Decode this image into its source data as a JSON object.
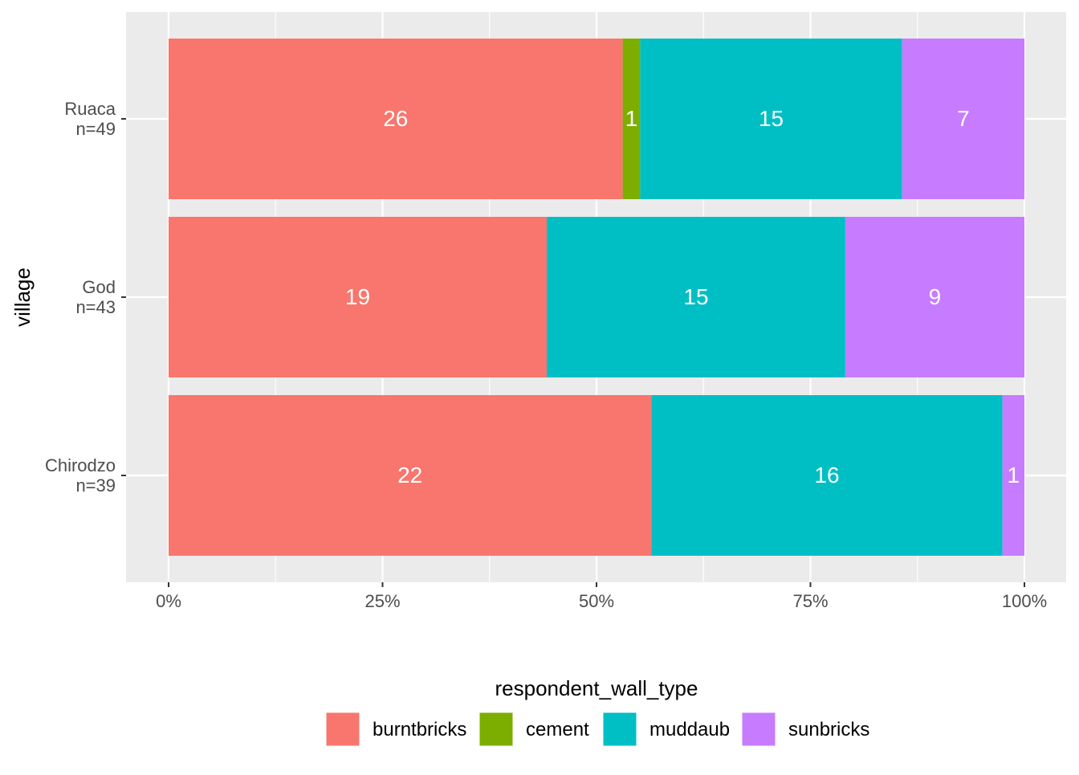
{
  "chart_data": {
    "type": "bar",
    "orientation": "horizontal",
    "stacked": "percent",
    "title": "",
    "xlabel": "",
    "ylabel": "village",
    "xlim": [
      0,
      100
    ],
    "x_ticks": [
      "0%",
      "25%",
      "50%",
      "75%",
      "100%"
    ],
    "x_tick_values": [
      0,
      25,
      50,
      75,
      100
    ],
    "categories": [
      "Ruaca\nn=49",
      "God\nn=43",
      "Chirodzo\nn=39"
    ],
    "category_lines": [
      [
        "Ruaca",
        "n=49"
      ],
      [
        "God",
        "n=43"
      ],
      [
        "Chirodzo",
        "n=39"
      ]
    ],
    "series": [
      {
        "name": "burntbricks",
        "color": "#F8766D",
        "values": [
          26,
          19,
          22
        ]
      },
      {
        "name": "cement",
        "color": "#7CAE00",
        "values": [
          1,
          0,
          0
        ]
      },
      {
        "name": "muddaub",
        "color": "#00BFC4",
        "values": [
          15,
          15,
          16
        ]
      },
      {
        "name": "sunbricks",
        "color": "#C77CFF",
        "values": [
          7,
          9,
          1
        ]
      }
    ],
    "grid": true,
    "legend": {
      "title": "respondent_wall_type",
      "placement": "bottom"
    }
  }
}
